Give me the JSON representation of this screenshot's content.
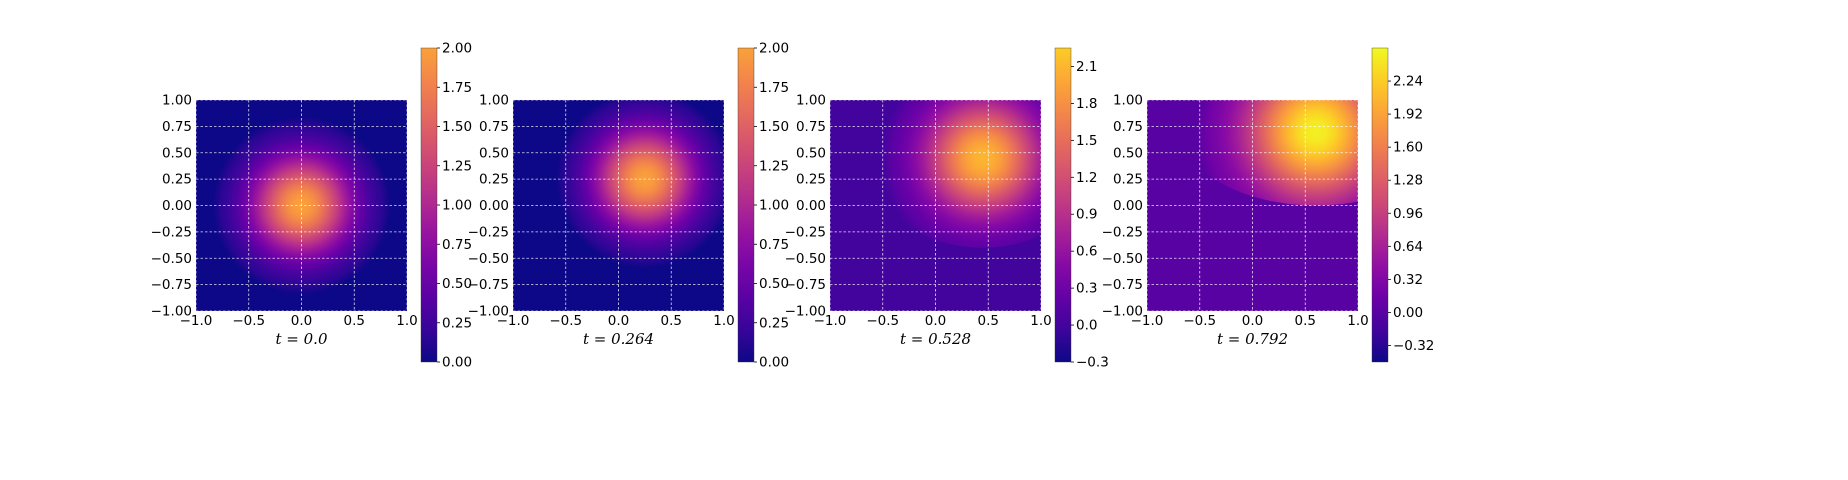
{
  "colormap": "plasma",
  "colors": {
    "background": "#ffffff",
    "grid": "#ffffff",
    "axis": "#000000"
  },
  "chart_data": [
    {
      "type": "heatmap",
      "xlabel": "t = 0.0",
      "xlim": [
        -1,
        1
      ],
      "ylim": [
        -1,
        1
      ],
      "xticks": [
        "−1.0",
        "−0.5",
        "0.0",
        "0.5",
        "1.0"
      ],
      "yticks": [
        "1.00",
        "0.75",
        "0.50",
        "0.25",
        "0.00",
        "−0.25",
        "−0.50",
        "−0.75",
        "−1.00"
      ],
      "grid": true,
      "peak": {
        "x": 0.0,
        "y": 0.0,
        "value": 2.0
      },
      "colorbar": {
        "min": 0.0,
        "max": 2.0,
        "cmap_max": 2.55,
        "ticks": [
          0.0,
          0.25,
          0.5,
          0.75,
          1.0,
          1.25,
          1.5,
          1.75,
          2.0
        ],
        "tick_labels": [
          "0.00",
          "0.25",
          "0.50",
          "0.75",
          "1.00",
          "1.25",
          "1.50",
          "1.75",
          "2.00"
        ]
      }
    },
    {
      "type": "heatmap",
      "xlabel": "t = 0.264",
      "xlim": [
        -1,
        1
      ],
      "ylim": [
        -1,
        1
      ],
      "xticks": [
        "−1.0",
        "−0.5",
        "0.0",
        "0.5",
        "1.0"
      ],
      "yticks": [
        "1.00",
        "0.75",
        "0.50",
        "0.25",
        "0.00",
        "−0.25",
        "−0.50",
        "−0.75",
        "−1.00"
      ],
      "grid": true,
      "peak": {
        "x": 0.25,
        "y": 0.25,
        "value": 2.0
      },
      "colorbar": {
        "min": 0.0,
        "max": 2.0,
        "cmap_max": 2.55,
        "ticks": [
          0.0,
          0.25,
          0.5,
          0.75,
          1.0,
          1.25,
          1.5,
          1.75,
          2.0
        ],
        "tick_labels": [
          "0.00",
          "0.25",
          "0.50",
          "0.75",
          "1.00",
          "1.25",
          "1.50",
          "1.75",
          "2.00"
        ]
      }
    },
    {
      "type": "heatmap",
      "xlabel": "t = 0.528",
      "xlim": [
        -1,
        1
      ],
      "ylim": [
        -1,
        1
      ],
      "xticks": [
        "−1.0",
        "−0.5",
        "0.0",
        "0.5",
        "1.0"
      ],
      "yticks": [
        "1.00",
        "0.75",
        "0.50",
        "0.25",
        "0.00",
        "−0.25",
        "−0.50",
        "−0.75",
        "−1.00"
      ],
      "grid": true,
      "peak": {
        "x": 0.45,
        "y": 0.45,
        "value": 2.1
      },
      "colorbar": {
        "min": -0.3,
        "max": 2.25,
        "cmap_max": 2.55,
        "ticks": [
          -0.3,
          0.0,
          0.3,
          0.6,
          0.9,
          1.2,
          1.5,
          1.8,
          2.1
        ],
        "tick_labels": [
          "−0.3",
          "0.0",
          "0.3",
          "0.6",
          "0.9",
          "1.2",
          "1.5",
          "1.8",
          "2.1"
        ]
      }
    },
    {
      "type": "heatmap",
      "xlabel": "t = 0.792",
      "xlim": [
        -1,
        1
      ],
      "ylim": [
        -1,
        1
      ],
      "xticks": [
        "−1.0",
        "−0.5",
        "0.0",
        "0.5",
        "1.0"
      ],
      "yticks": [
        "1.00",
        "0.75",
        "0.50",
        "0.25",
        "0.00",
        "−0.25",
        "−0.50",
        "−0.75",
        "−1.00"
      ],
      "grid": true,
      "peak": {
        "x": 0.6,
        "y": 0.7,
        "value": 2.5
      },
      "colorbar": {
        "min": -0.48,
        "max": 2.56,
        "cmap_max": 2.56,
        "ticks": [
          -0.32,
          0.0,
          0.32,
          0.64,
          0.96,
          1.28,
          1.6,
          1.92,
          2.24
        ],
        "tick_labels": [
          "−0.32",
          "0.00",
          "0.32",
          "0.64",
          "0.96",
          "1.28",
          "1.60",
          "1.92",
          "2.24"
        ]
      }
    }
  ]
}
